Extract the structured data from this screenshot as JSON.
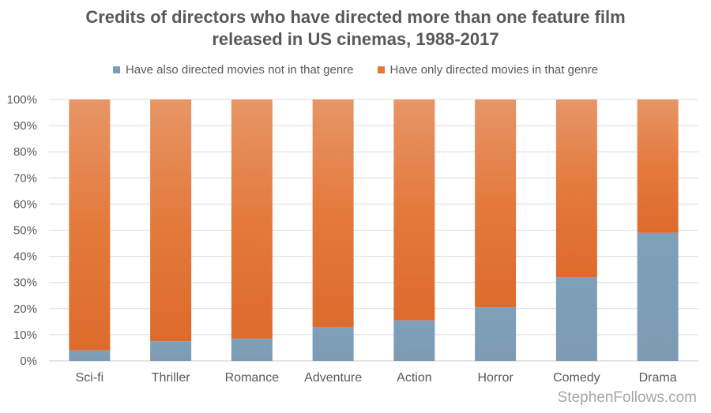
{
  "chart_data": {
    "type": "bar",
    "stacked": true,
    "title_lines": [
      "Credits of directors who have directed more than one feature film",
      "released in US cinemas, 1988-2017"
    ],
    "categories": [
      "Sci-fi",
      "Thriller",
      "Romance",
      "Adventure",
      "Action",
      "Horror",
      "Comedy",
      "Drama"
    ],
    "series": [
      {
        "name": "Have also directed movies not in that genre",
        "values": [
          4,
          7.5,
          8.5,
          13,
          15.5,
          20.5,
          32,
          49
        ],
        "color": "#7f9db6"
      },
      {
        "name": "Have only directed movies in that genre",
        "values": [
          96,
          92.5,
          91.5,
          87,
          84.5,
          79.5,
          68,
          51
        ],
        "color": "#e0783a"
      }
    ],
    "y_ticks": [
      "0%",
      "10%",
      "20%",
      "30%",
      "40%",
      "50%",
      "60%",
      "70%",
      "80%",
      "90%",
      "100%"
    ],
    "ylim": [
      0,
      100
    ],
    "grid": true,
    "legend_position": "top"
  },
  "watermark": "StephenFollows.com"
}
